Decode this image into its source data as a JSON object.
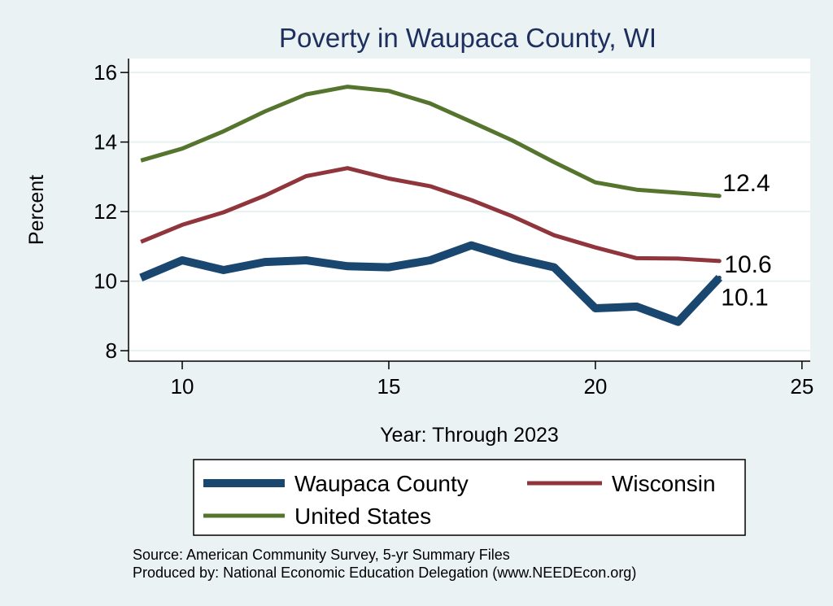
{
  "chart_data": {
    "type": "line",
    "title": "Poverty in Waupaca County, WI",
    "xlabel": "Year: Through 2023",
    "ylabel": "Percent",
    "xlim": [
      8.7,
      25.2
    ],
    "ylim": [
      7.7,
      16.4
    ],
    "xticks": [
      10,
      15,
      20,
      25
    ],
    "yticks": [
      8,
      10,
      12,
      14,
      16
    ],
    "grid": true,
    "x": [
      9,
      10,
      11,
      12,
      13,
      14,
      15,
      16,
      17,
      18,
      19,
      20,
      21,
      22,
      23
    ],
    "series": [
      {
        "name": "Waupaca County",
        "color": "#1a476f",
        "values": [
          10.1,
          10.6,
          10.32,
          10.55,
          10.6,
          10.43,
          10.4,
          10.6,
          11.03,
          10.67,
          10.4,
          9.22,
          9.27,
          8.83,
          10.1
        ],
        "end_label": "10.1"
      },
      {
        "name": "Wisconsin",
        "color": "#90353b",
        "values": [
          11.13,
          11.62,
          11.98,
          12.46,
          13.02,
          13.25,
          12.95,
          12.73,
          12.33,
          11.86,
          11.32,
          10.97,
          10.66,
          10.65,
          10.58
        ],
        "end_label": "10.6"
      },
      {
        "name": "United States",
        "color": "#55752f",
        "values": [
          13.47,
          13.81,
          14.31,
          14.88,
          15.37,
          15.59,
          15.47,
          15.11,
          14.58,
          14.04,
          13.42,
          12.84,
          12.63,
          12.54,
          12.45
        ],
        "end_label": "12.4"
      }
    ],
    "legend_position": "bottom",
    "notes": [
      "Source: American Community Survey, 5-yr Summary Files",
      "Produced by: National Economic Education Delegation (www.NEEDEcon.org)"
    ]
  }
}
